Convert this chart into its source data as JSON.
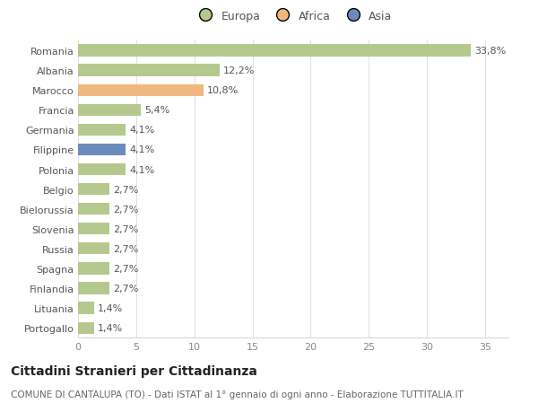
{
  "countries": [
    "Romania",
    "Albania",
    "Marocco",
    "Francia",
    "Germania",
    "Filippine",
    "Polonia",
    "Belgio",
    "Bielorussia",
    "Slovenia",
    "Russia",
    "Spagna",
    "Finlandia",
    "Lituania",
    "Portogallo"
  ],
  "values": [
    33.8,
    12.2,
    10.8,
    5.4,
    4.1,
    4.1,
    4.1,
    2.7,
    2.7,
    2.7,
    2.7,
    2.7,
    2.7,
    1.4,
    1.4
  ],
  "labels": [
    "33,8%",
    "12,2%",
    "10,8%",
    "5,4%",
    "4,1%",
    "4,1%",
    "4,1%",
    "2,7%",
    "2,7%",
    "2,7%",
    "2,7%",
    "2,7%",
    "2,7%",
    "1,4%",
    "1,4%"
  ],
  "continents": [
    "Europa",
    "Europa",
    "Africa",
    "Europa",
    "Europa",
    "Asia",
    "Europa",
    "Europa",
    "Europa",
    "Europa",
    "Europa",
    "Europa",
    "Europa",
    "Europa",
    "Europa"
  ],
  "colors": {
    "Europa": "#b5c98e",
    "Africa": "#f0b87e",
    "Asia": "#6b8cba"
  },
  "legend": [
    "Europa",
    "Africa",
    "Asia"
  ],
  "legend_colors": [
    "#b5c98e",
    "#f0b87e",
    "#6b8cba"
  ],
  "title": "Cittadini Stranieri per Cittadinanza",
  "subtitle": "COMUNE DI CANTALUPA (TO) - Dati ISTAT al 1° gennaio di ogni anno - Elaborazione TUTTITALIA.IT",
  "xlim": [
    0,
    37
  ],
  "xticks": [
    0,
    5,
    10,
    15,
    20,
    25,
    30,
    35
  ],
  "background_color": "#ffffff",
  "bar_height": 0.6,
  "label_fontsize": 8,
  "tick_fontsize": 8,
  "title_fontsize": 10,
  "subtitle_fontsize": 7.5
}
